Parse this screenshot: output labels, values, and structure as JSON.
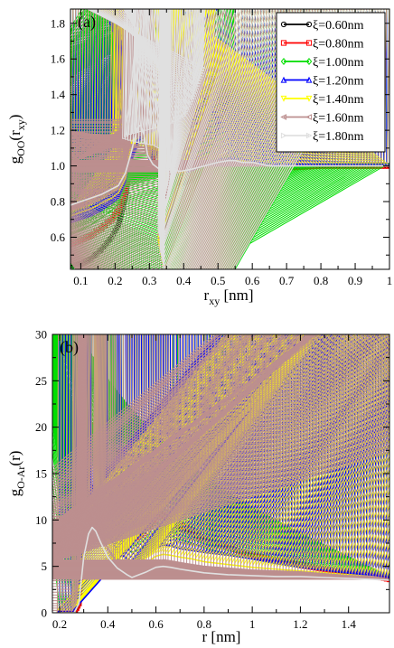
{
  "chart_data": [
    {
      "type": "line",
      "panel_label": "(a)",
      "xlabel_main": "r",
      "xlabel_sub": "xy",
      "xlabel_unit": " [nm]",
      "ylabel_main": "g",
      "ylabel_sub": "OO",
      "ylabel_arg_open": "(r",
      "ylabel_arg_sub": "xy",
      "ylabel_arg_close": ")",
      "xlim": [
        0.07,
        1.0
      ],
      "ylim": [
        0.42,
        1.88
      ],
      "xticks": [
        0.1,
        0.2,
        0.3,
        0.4,
        0.5,
        0.6,
        0.7,
        0.8,
        0.9,
        1.0
      ],
      "xtick_labels": [
        "0.1",
        "0.2",
        "0.3",
        "0.4",
        "0.5",
        "0.6",
        "0.7",
        "0.8",
        "0.9",
        "1"
      ],
      "yticks": [
        0.6,
        0.8,
        1.0,
        1.2,
        1.4,
        1.6,
        1.8
      ],
      "ytick_labels": [
        "0.6",
        "0.8",
        "1.0",
        "1.2",
        "1.4",
        "1.6",
        "1.8"
      ],
      "legend_position": "top-right",
      "series": [
        {
          "name": "ξ=0.60nm",
          "color": "#000000",
          "marker": "circle",
          "x": [
            0.07,
            0.1,
            0.13,
            0.16,
            0.19,
            0.21,
            0.23,
            0.245,
            0.255,
            0.265,
            0.275,
            0.285,
            0.295,
            0.31,
            0.33,
            0.36,
            0.39,
            0.42,
            0.46,
            0.5,
            0.53,
            0.55,
            0.57,
            0.6,
            0.65,
            0.7,
            0.8,
            0.9,
            1.0
          ],
          "y": [
            0.44,
            0.45,
            0.48,
            0.53,
            0.6,
            0.67,
            0.82,
            1.05,
            1.35,
            1.7,
            1.84,
            1.58,
            1.22,
            1.02,
            0.95,
            0.92,
            0.9,
            0.92,
            0.97,
            1.03,
            1.06,
            1.06,
            1.05,
            1.02,
            0.99,
            0.99,
            1.0,
            1.0,
            1.0
          ]
        },
        {
          "name": "ξ=0.80nm",
          "color": "#ff0000",
          "marker": "square",
          "x": [
            0.07,
            0.1,
            0.13,
            0.16,
            0.19,
            0.21,
            0.23,
            0.245,
            0.255,
            0.265,
            0.275,
            0.285,
            0.295,
            0.31,
            0.33,
            0.36,
            0.39,
            0.42,
            0.46,
            0.5,
            0.53,
            0.55,
            0.57,
            0.6,
            0.65,
            0.7,
            0.8,
            0.9,
            1.0
          ],
          "y": [
            0.56,
            0.58,
            0.61,
            0.65,
            0.7,
            0.75,
            0.86,
            1.05,
            1.28,
            1.5,
            1.56,
            1.4,
            1.15,
            1.01,
            0.96,
            0.94,
            0.93,
            0.95,
            0.99,
            1.03,
            1.05,
            1.05,
            1.04,
            1.02,
            1.0,
            0.99,
            1.0,
            1.0,
            1.0
          ]
        },
        {
          "name": "ξ=1.00nm",
          "color": "#00dd00",
          "marker": "diamond",
          "x": [
            0.07,
            0.1,
            0.13,
            0.16,
            0.19,
            0.21,
            0.23,
            0.245,
            0.255,
            0.265,
            0.275,
            0.285,
            0.295,
            0.31,
            0.33,
            0.36,
            0.39,
            0.42,
            0.46,
            0.5,
            0.53,
            0.55,
            0.57,
            0.6,
            0.65,
            0.7,
            0.8,
            0.9,
            1.0
          ],
          "y": [
            0.62,
            0.64,
            0.67,
            0.71,
            0.75,
            0.79,
            0.89,
            1.06,
            1.25,
            1.4,
            1.44,
            1.32,
            1.12,
            1.01,
            0.97,
            0.95,
            0.95,
            0.96,
            0.99,
            1.03,
            1.04,
            1.04,
            1.03,
            1.02,
            1.0,
            0.99,
            1.0,
            1.0,
            1.0
          ]
        },
        {
          "name": "ξ=1.20nm",
          "color": "#0000ff",
          "marker": "triangle",
          "x": [
            0.07,
            0.1,
            0.13,
            0.16,
            0.19,
            0.21,
            0.23,
            0.245,
            0.255,
            0.265,
            0.275,
            0.285,
            0.295,
            0.31,
            0.33,
            0.36,
            0.39,
            0.42,
            0.46,
            0.5,
            0.53,
            0.55,
            0.57,
            0.6,
            0.65,
            0.7,
            0.8,
            0.9,
            1.0
          ],
          "y": [
            0.68,
            0.7,
            0.72,
            0.75,
            0.79,
            0.82,
            0.91,
            1.06,
            1.21,
            1.32,
            1.36,
            1.26,
            1.1,
            1.01,
            0.97,
            0.96,
            0.96,
            0.97,
            1.0,
            1.03,
            1.04,
            1.04,
            1.03,
            1.02,
            1.0,
            1.0,
            1.0,
            1.0,
            1.0
          ]
        },
        {
          "name": "ξ=1.40nm",
          "color": "#ffff00",
          "marker": "triangle-down",
          "x": [
            0.07,
            0.1,
            0.13,
            0.16,
            0.19,
            0.21,
            0.23,
            0.245,
            0.255,
            0.265,
            0.275,
            0.285,
            0.295,
            0.31,
            0.33,
            0.36,
            0.39,
            0.42,
            0.46,
            0.5,
            0.53,
            0.55,
            0.57,
            0.6,
            0.65,
            0.7,
            0.8,
            0.9,
            1.0
          ],
          "y": [
            0.72,
            0.74,
            0.76,
            0.79,
            0.82,
            0.85,
            0.93,
            1.06,
            1.18,
            1.27,
            1.3,
            1.22,
            1.08,
            1.01,
            0.98,
            0.97,
            0.96,
            0.98,
            1.0,
            1.02,
            1.03,
            1.03,
            1.03,
            1.02,
            1.0,
            1.0,
            1.0,
            1.0,
            1.0
          ]
        },
        {
          "name": "ξ=1.60nm",
          "color": "#bc8f8f",
          "marker": "triangle-left",
          "x": [
            0.07,
            0.1,
            0.13,
            0.16,
            0.19,
            0.21,
            0.23,
            0.245,
            0.255,
            0.265,
            0.275,
            0.285,
            0.295,
            0.31,
            0.33,
            0.36,
            0.39,
            0.42,
            0.46,
            0.5,
            0.53,
            0.55,
            0.57,
            0.6,
            0.65,
            0.7,
            0.8,
            0.9,
            1.0
          ],
          "y": [
            0.75,
            0.77,
            0.79,
            0.82,
            0.85,
            0.87,
            0.95,
            1.06,
            1.16,
            1.24,
            1.26,
            1.19,
            1.07,
            1.01,
            0.98,
            0.97,
            0.97,
            0.98,
            1.0,
            1.02,
            1.03,
            1.03,
            1.02,
            1.02,
            1.0,
            1.0,
            1.0,
            1.0,
            1.0
          ]
        },
        {
          "name": "ξ=1.80nm",
          "color": "#e0e0e0",
          "marker": "triangle-right",
          "x": [
            0.07,
            0.1,
            0.13,
            0.16,
            0.19,
            0.21,
            0.23,
            0.245,
            0.255,
            0.265,
            0.275,
            0.285,
            0.295,
            0.31,
            0.33,
            0.36,
            0.39,
            0.42,
            0.46,
            0.5,
            0.53,
            0.55,
            0.57,
            0.6,
            0.65,
            0.7,
            0.8,
            0.9,
            1.0
          ],
          "y": [
            0.78,
            0.8,
            0.82,
            0.84,
            0.87,
            0.89,
            0.96,
            1.06,
            1.14,
            1.21,
            1.23,
            1.17,
            1.06,
            1.01,
            0.98,
            0.98,
            0.97,
            0.98,
            1.0,
            1.02,
            1.03,
            1.03,
            1.02,
            1.02,
            1.0,
            1.0,
            1.0,
            1.0,
            1.0
          ]
        }
      ]
    },
    {
      "type": "line",
      "panel_label": "(b)",
      "xlabel_main": "r [nm]",
      "ylabel_main": "g",
      "ylabel_sub": "O-Ar",
      "ylabel_arg": "(r)",
      "xlim": [
        0.17,
        1.57
      ],
      "ylim": [
        0,
        30
      ],
      "xticks": [
        0.2,
        0.4,
        0.6,
        0.8,
        1.0,
        1.2,
        1.4
      ],
      "xtick_labels": [
        "0.2",
        "0.4",
        "0.6",
        "0.8",
        "1",
        "1.2",
        "1.4"
      ],
      "yticks": [
        0,
        5,
        10,
        15,
        20,
        25,
        30
      ],
      "ytick_labels": [
        "0",
        "5",
        "10",
        "15",
        "20",
        "25",
        "30"
      ],
      "series": [
        {
          "name": "ξ=0.60nm",
          "color": "#000000",
          "marker": "circle",
          "x": [
            0.2,
            0.26,
            0.28,
            0.3,
            0.32,
            0.335,
            0.35,
            0.37,
            0.4,
            0.44,
            0.48,
            0.5,
            0.53,
            0.56,
            0.6,
            0.63,
            0.66,
            0.7,
            0.75,
            0.8,
            0.9,
            1.0,
            1.1,
            1.2,
            1.3,
            1.4,
            1.5,
            1.57
          ],
          "y": [
            0,
            0,
            1,
            12,
            22,
            26,
            25.5,
            24,
            21,
            17,
            13,
            10,
            9,
            9.5,
            11,
            10.5,
            10,
            9,
            8.5,
            8,
            7,
            6.3,
            5.7,
            5.2,
            4.8,
            4.4,
            4.0,
            3.6
          ]
        },
        {
          "name": "ξ=0.80nm",
          "color": "#ff0000",
          "marker": "square",
          "x": [
            0.2,
            0.26,
            0.28,
            0.3,
            0.32,
            0.335,
            0.35,
            0.37,
            0.4,
            0.44,
            0.48,
            0.5,
            0.53,
            0.56,
            0.6,
            0.63,
            0.66,
            0.7,
            0.75,
            0.8,
            0.9,
            1.0,
            1.1,
            1.2,
            1.3,
            1.4,
            1.5,
            1.57
          ],
          "y": [
            0,
            0,
            1,
            10,
            18,
            20.5,
            19.5,
            16,
            12,
            10,
            8.5,
            8,
            8.2,
            8.8,
            10.3,
            10.5,
            10.2,
            9.5,
            8.8,
            8,
            7,
            6.2,
            5.6,
            5.1,
            4.7,
            4.3,
            4.0,
            3.6
          ]
        },
        {
          "name": "ξ=1.00nm",
          "color": "#00dd00",
          "marker": "diamond",
          "x": [
            0.2,
            0.26,
            0.28,
            0.3,
            0.32,
            0.335,
            0.35,
            0.37,
            0.4,
            0.44,
            0.48,
            0.5,
            0.53,
            0.56,
            0.6,
            0.63,
            0.66,
            0.7,
            0.75,
            0.8,
            0.9,
            1.0,
            1.1,
            1.2,
            1.3,
            1.4,
            1.5,
            1.57
          ],
          "y": [
            0,
            0,
            1,
            9,
            15,
            16,
            15.5,
            13,
            10,
            8,
            7,
            6.5,
            6.8,
            7.3,
            8.2,
            8.5,
            8.3,
            7.9,
            7.5,
            7.0,
            6.3,
            5.8,
            5.3,
            4.9,
            4.6,
            4.3,
            4.0,
            3.6
          ]
        },
        {
          "name": "ξ=1.20nm",
          "color": "#0000ff",
          "marker": "triangle",
          "x": [
            0.2,
            0.26,
            0.28,
            0.3,
            0.32,
            0.335,
            0.35,
            0.37,
            0.4,
            0.44,
            0.48,
            0.5,
            0.53,
            0.56,
            0.6,
            0.63,
            0.66,
            0.7,
            0.75,
            0.8,
            0.9,
            1.0,
            1.1,
            1.2,
            1.3,
            1.4,
            1.5,
            1.57
          ],
          "y": [
            0,
            0,
            1,
            8,
            12.5,
            13.3,
            12.8,
            11,
            8.5,
            6.8,
            5.8,
            5.3,
            5.6,
            6.1,
            7.0,
            7.3,
            7.2,
            6.9,
            6.7,
            6.5,
            6.2,
            5.8,
            5.3,
            4.9,
            4.6,
            4.3,
            4.0,
            3.6
          ]
        },
        {
          "name": "ξ=1.40nm",
          "color": "#ffff00",
          "marker": "triangle-down",
          "x": [
            0.2,
            0.26,
            0.28,
            0.3,
            0.32,
            0.335,
            0.35,
            0.37,
            0.4,
            0.44,
            0.48,
            0.5,
            0.53,
            0.56,
            0.6,
            0.63,
            0.66,
            0.7,
            0.75,
            0.8,
            0.9,
            1.0,
            1.1,
            1.2,
            1.3,
            1.4,
            1.5,
            1.57
          ],
          "y": [
            0,
            0,
            1,
            7,
            11,
            12,
            11.5,
            9.8,
            7.6,
            6.0,
            5.1,
            4.7,
            5.0,
            5.4,
            6.1,
            6.3,
            6.2,
            6.0,
            5.8,
            5.5,
            5.2,
            4.9,
            4.7,
            4.5,
            4.3,
            4.1,
            3.9,
            3.6
          ]
        },
        {
          "name": "ξ=1.60nm",
          "color": "#bc8f8f",
          "marker": "triangle-left",
          "x": [
            0.2,
            0.26,
            0.28,
            0.3,
            0.32,
            0.335,
            0.35,
            0.37,
            0.4,
            0.44,
            0.48,
            0.5,
            0.53,
            0.56,
            0.6,
            0.63,
            0.66,
            0.7,
            0.75,
            0.8,
            0.9,
            1.0,
            1.1,
            1.2,
            1.3,
            1.4,
            1.5,
            1.57
          ],
          "y": [
            0,
            0,
            1,
            6.5,
            10,
            11,
            10.4,
            8.8,
            6.9,
            5.4,
            4.6,
            4.2,
            4.5,
            4.9,
            5.5,
            5.7,
            5.6,
            5.4,
            5.2,
            5.0,
            4.8,
            4.6,
            4.5,
            4.4,
            4.2,
            4.0,
            3.9,
            3.6
          ]
        },
        {
          "name": "ξ=1.80nm",
          "color": "#e0e0e0",
          "marker": "triangle-right",
          "x": [
            0.2,
            0.26,
            0.28,
            0.3,
            0.32,
            0.335,
            0.35,
            0.37,
            0.4,
            0.44,
            0.48,
            0.5,
            0.53,
            0.56,
            0.6,
            0.63,
            0.66,
            0.7,
            0.75,
            0.8,
            0.9,
            1.0,
            1.1,
            1.2,
            1.3,
            1.4,
            1.5,
            1.57
          ],
          "y": [
            0,
            0,
            1,
            6,
            8.5,
            9.2,
            8.8,
            7.6,
            6.0,
            4.8,
            4.1,
            3.8,
            4.1,
            4.4,
            4.9,
            5.0,
            4.9,
            4.7,
            4.5,
            4.3,
            4.1,
            4.0,
            3.9,
            3.9,
            3.8,
            3.7,
            3.6,
            3.5
          ]
        }
      ]
    }
  ]
}
